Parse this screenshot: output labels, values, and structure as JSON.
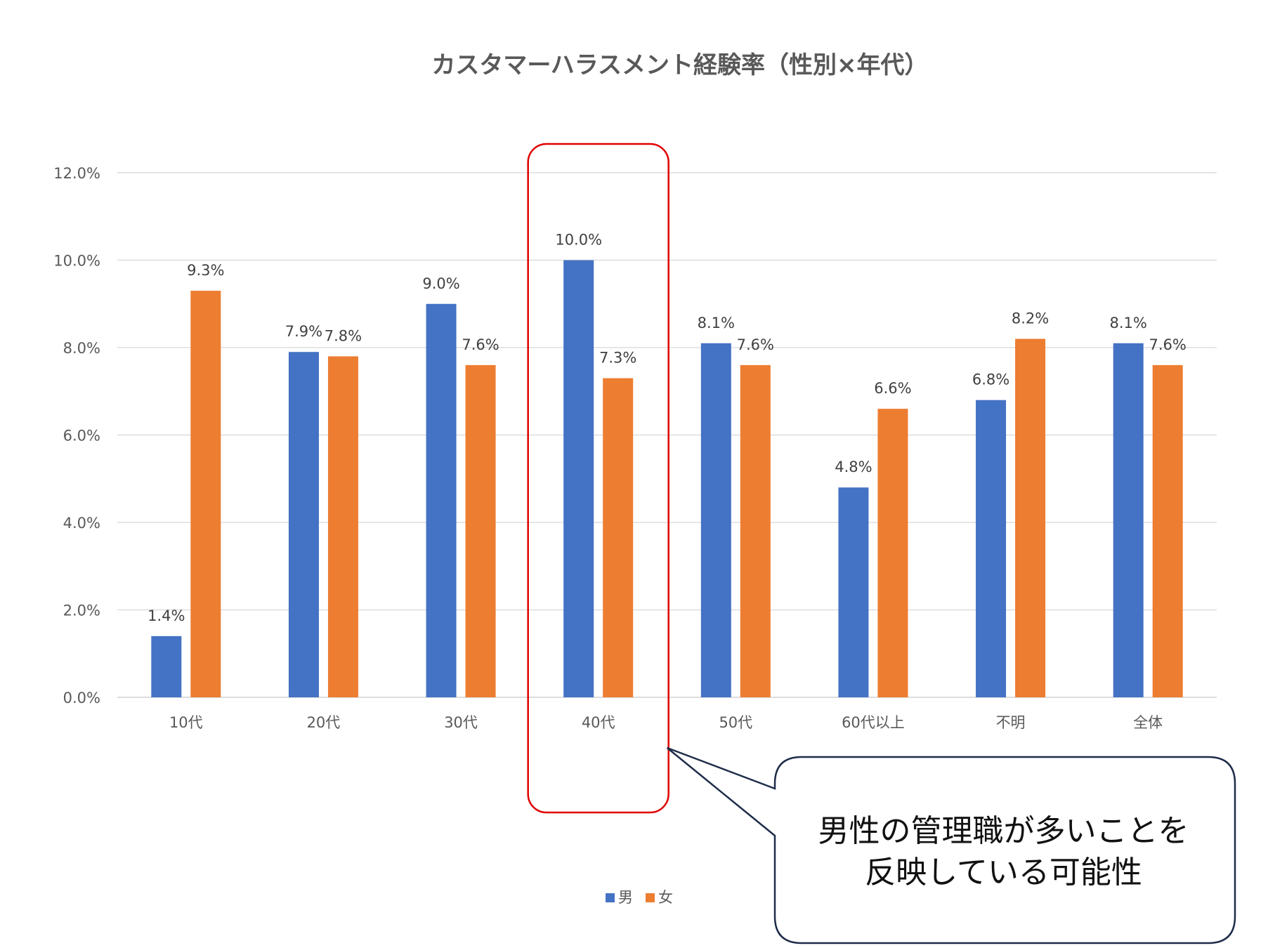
{
  "chart_data": {
    "type": "bar",
    "title": "カスタマーハラスメント経験率（性別×年代）",
    "categories": [
      "10代",
      "20代",
      "30代",
      "40代",
      "50代",
      "60代以上",
      "不明",
      "全体"
    ],
    "series": [
      {
        "name": "男",
        "color": "#4472C4",
        "values": [
          1.4,
          7.9,
          9.0,
          10.0,
          8.1,
          4.8,
          6.8,
          8.1
        ]
      },
      {
        "name": "女",
        "color": "#ED7D31",
        "values": [
          9.3,
          7.8,
          7.6,
          7.3,
          7.6,
          6.6,
          8.2,
          7.6
        ]
      }
    ],
    "ylim": [
      0,
      12
    ],
    "yticks": [
      "0.0%",
      "2.0%",
      "4.0%",
      "6.0%",
      "8.0%",
      "10.0%",
      "12.0%"
    ],
    "value_suffix": "%",
    "grid": true,
    "legend_position": "bottom"
  },
  "annotation": {
    "highlight_category": "40代",
    "highlight_color": "#E00000",
    "callout_lines": [
      "男性の管理職が多いことを",
      "反映している可能性"
    ],
    "callout_border_color": "#1F2D4A"
  }
}
